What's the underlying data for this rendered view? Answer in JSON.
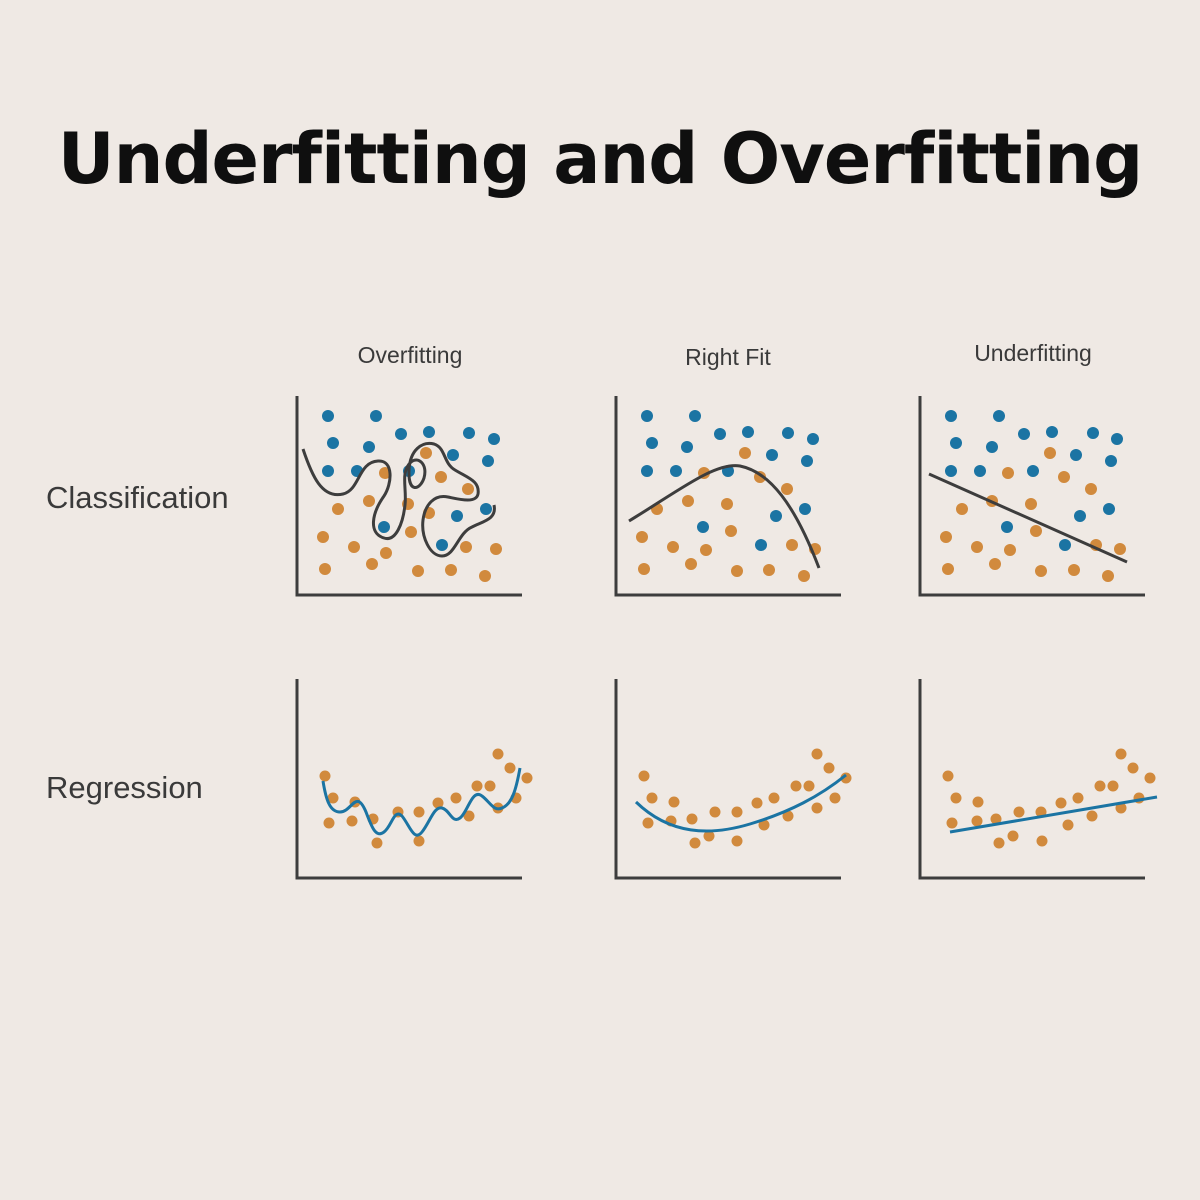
{
  "title": "Underfitting and Overfitting",
  "columns": [
    "Overfitting",
    "Right Fit",
    "Underfitting"
  ],
  "rows": [
    "Classification",
    "Regression"
  ],
  "colors": {
    "background": "#efe9e4",
    "blue": "#1b74a3",
    "orange": "#d18a3d",
    "axis": "#3d3d3d",
    "boundary": "#3d3d3d",
    "fit_line": "#1b74a3"
  },
  "icons": [
    "scatter-plot",
    "decision-boundary",
    "regression-curve"
  ]
}
